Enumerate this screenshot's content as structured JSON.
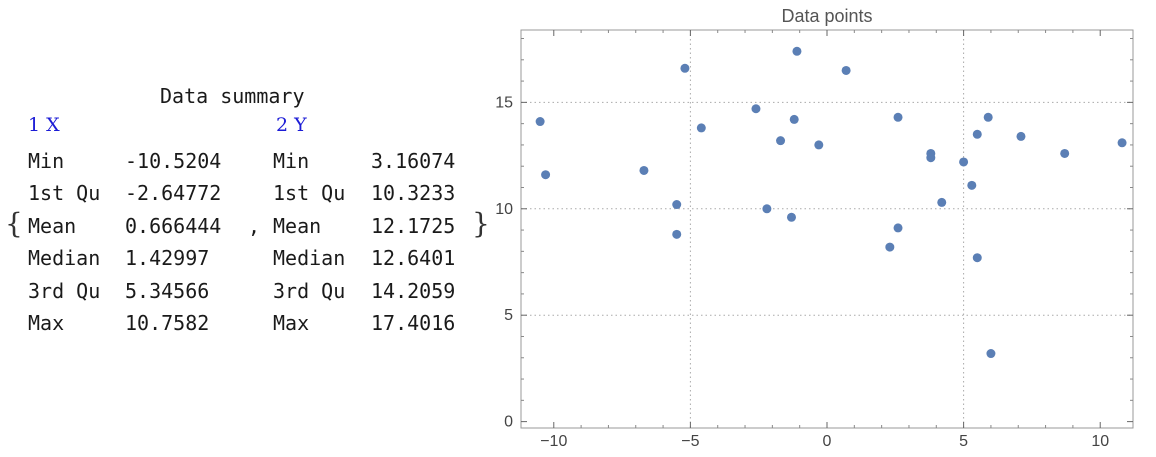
{
  "summary": {
    "title": "Data summary",
    "columns": [
      {
        "header": "1 X",
        "rows": [
          {
            "label": "Min",
            "value": "-10.5204"
          },
          {
            "label": "1st Qu",
            "value": "-2.64772"
          },
          {
            "label": "Mean",
            "value": "0.666444"
          },
          {
            "label": "Median",
            "value": "1.42997"
          },
          {
            "label": "3rd Qu",
            "value": "5.34566"
          },
          {
            "label": "Max",
            "value": "10.7582"
          }
        ]
      },
      {
        "header": "2 Y",
        "rows": [
          {
            "label": "Min",
            "value": "3.16074"
          },
          {
            "label": "1st Qu",
            "value": "10.3233"
          },
          {
            "label": "Mean",
            "value": "12.1725"
          },
          {
            "label": "Median",
            "value": "12.6401"
          },
          {
            "label": "3rd Qu",
            "value": "14.2059"
          },
          {
            "label": "Max",
            "value": "17.4016"
          }
        ]
      }
    ],
    "separator": ",",
    "open_brace": "{",
    "close_brace": "}"
  },
  "chart_data": {
    "type": "scatter",
    "title": "Data points",
    "xlabel": "",
    "ylabel": "",
    "xlim": [
      -11.2,
      11.2
    ],
    "ylim": [
      -0.3,
      18.4
    ],
    "xticks": [
      -10,
      -5,
      0,
      5,
      10
    ],
    "yticks": [
      0,
      5,
      10,
      15
    ],
    "xtick_labels": [
      "−10",
      "−5",
      "0",
      "5",
      "10"
    ],
    "ytick_labels": [
      "0",
      "5",
      "10",
      "15"
    ],
    "grid": "dotted at x=-5, x=5, y=5, y=10, y=15",
    "grid_x": [
      -5,
      5
    ],
    "grid_y": [
      5,
      10,
      15
    ],
    "point_color": "#5b7fb5",
    "x": [
      -10.5,
      -10.3,
      -6.7,
      -5.5,
      -5.5,
      -5.2,
      -4.6,
      -2.6,
      -2.2,
      -1.7,
      -1.3,
      -1.2,
      -1.1,
      -0.3,
      0.7,
      2.3,
      2.6,
      2.6,
      3.8,
      3.8,
      4.2,
      5.0,
      5.3,
      5.5,
      5.5,
      5.9,
      6.0,
      7.1,
      8.7,
      10.8
    ],
    "y": [
      14.1,
      11.6,
      11.8,
      10.2,
      8.8,
      16.6,
      13.8,
      14.7,
      10.0,
      13.2,
      9.6,
      14.2,
      17.4,
      13.0,
      16.5,
      8.2,
      9.1,
      14.3,
      12.6,
      12.4,
      10.3,
      12.2,
      11.1,
      13.5,
      7.7,
      14.3,
      3.2,
      13.4,
      12.6,
      13.1
    ]
  }
}
